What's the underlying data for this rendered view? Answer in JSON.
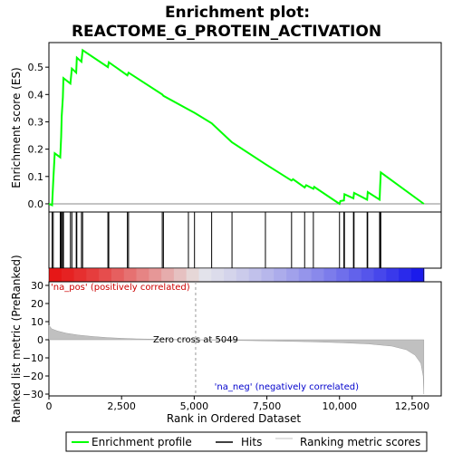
{
  "chart_data": {
    "type": "line",
    "title_line1": "Enrichment plot:",
    "title_line2": "REACTOME_G_PROTEIN_ACTIVATION",
    "top_panel": {
      "ylabel": "Enrichment score (ES)",
      "ylim": [
        -0.03,
        0.59
      ],
      "yticks": [
        0.0,
        0.1,
        0.2,
        0.3,
        0.4,
        0.5
      ],
      "ytick_labels": [
        "0.0",
        "0.1",
        "0.2",
        "0.3",
        "0.4",
        "0.5"
      ],
      "es_curve": [
        [
          0,
          0.0
        ],
        [
          110,
          -0.005
        ],
        [
          150,
          0.085
        ],
        [
          200,
          0.185
        ],
        [
          390,
          0.17
        ],
        [
          420,
          0.245
        ],
        [
          440,
          0.32
        ],
        [
          480,
          0.39
        ],
        [
          500,
          0.46
        ],
        [
          740,
          0.44
        ],
        [
          790,
          0.495
        ],
        [
          940,
          0.48
        ],
        [
          960,
          0.535
        ],
        [
          1120,
          0.52
        ],
        [
          1160,
          0.562
        ],
        [
          2030,
          0.5
        ],
        [
          2060,
          0.518
        ],
        [
          2700,
          0.47
        ],
        [
          2740,
          0.48
        ],
        [
          3900,
          0.4
        ],
        [
          3940,
          0.395
        ],
        [
          4800,
          0.345
        ],
        [
          5010,
          0.333
        ],
        [
          5600,
          0.295
        ],
        [
          6300,
          0.225
        ],
        [
          7450,
          0.145
        ],
        [
          8350,
          0.085
        ],
        [
          8400,
          0.09
        ],
        [
          8800,
          0.06
        ],
        [
          8850,
          0.068
        ],
        [
          9100,
          0.055
        ],
        [
          9130,
          0.062
        ],
        [
          10000,
          0.0
        ],
        [
          10030,
          0.01
        ],
        [
          10150,
          0.012
        ],
        [
          10170,
          0.035
        ],
        [
          10480,
          0.02
        ],
        [
          10500,
          0.04
        ],
        [
          10950,
          0.015
        ],
        [
          10970,
          0.043
        ],
        [
          11380,
          0.015
        ],
        [
          11400,
          0.065
        ],
        [
          11420,
          0.115
        ],
        [
          12900,
          0.0
        ]
      ],
      "hits": [
        110,
        150,
        390,
        420,
        440,
        480,
        500,
        740,
        790,
        940,
        960,
        1120,
        1160,
        2030,
        2060,
        2700,
        2740,
        3900,
        3940,
        4800,
        5010,
        5600,
        6300,
        7450,
        8350,
        8800,
        9100,
        10000,
        10150,
        10170,
        10480,
        10500,
        10950,
        10970,
        11380,
        11400,
        11420
      ]
    },
    "ranked_panel": {
      "ylabel": "Ranked list metric (PreRanked)",
      "ylim": [
        -31,
        32
      ],
      "yticks": [
        30,
        20,
        10,
        0,
        -10,
        -20,
        -30
      ],
      "ytick_labels": [
        "30",
        "20",
        "10",
        "0",
        "−10",
        "−20",
        "−30"
      ],
      "metric_curve": [
        [
          0,
          8
        ],
        [
          100,
          6
        ],
        [
          300,
          4.8
        ],
        [
          600,
          3.6
        ],
        [
          1000,
          2.6
        ],
        [
          1500,
          1.8
        ],
        [
          2000,
          1.2
        ],
        [
          2500,
          0.8
        ],
        [
          3000,
          0.5
        ],
        [
          4000,
          0.2
        ],
        [
          5049,
          0
        ],
        [
          6000,
          -0.3
        ],
        [
          7000,
          -0.5
        ],
        [
          8000,
          -0.8
        ],
        [
          9000,
          -1.1
        ],
        [
          10000,
          -1.6
        ],
        [
          11000,
          -2.3
        ],
        [
          11800,
          -3.5
        ],
        [
          12300,
          -5.5
        ],
        [
          12600,
          -8.5
        ],
        [
          12800,
          -13
        ],
        [
          12880,
          -20
        ],
        [
          12900,
          -30
        ]
      ],
      "zero_cross_label": "Zero cross at 5049",
      "zero_cross_x": 5049,
      "pos_label": "'na_pos' (positively correlated)",
      "neg_label": "'na_neg' (negatively correlated)"
    },
    "xaxis": {
      "xlabel": "Rank in Ordered Dataset",
      "xlim": [
        0,
        13500
      ],
      "xticks": [
        0,
        2500,
        5000,
        7500,
        10000,
        12500
      ],
      "xtick_labels": [
        "0",
        "2,500",
        "5,000",
        "7,500",
        "10,000",
        "12,500"
      ],
      "list_length": 12900
    },
    "legend": {
      "items": [
        {
          "label": "Enrichment profile",
          "color": "#00ff00"
        },
        {
          "label": "Hits",
          "color": "#000000"
        },
        {
          "label": "Ranking metric scores",
          "color": "#c0c0c0"
        }
      ]
    },
    "colors": {
      "es_line": "#00ff00",
      "hit": "#000000",
      "metric_fill": "#c0c0c0",
      "pos_text": "#cc0000",
      "neg_text": "#0000cc"
    }
  }
}
